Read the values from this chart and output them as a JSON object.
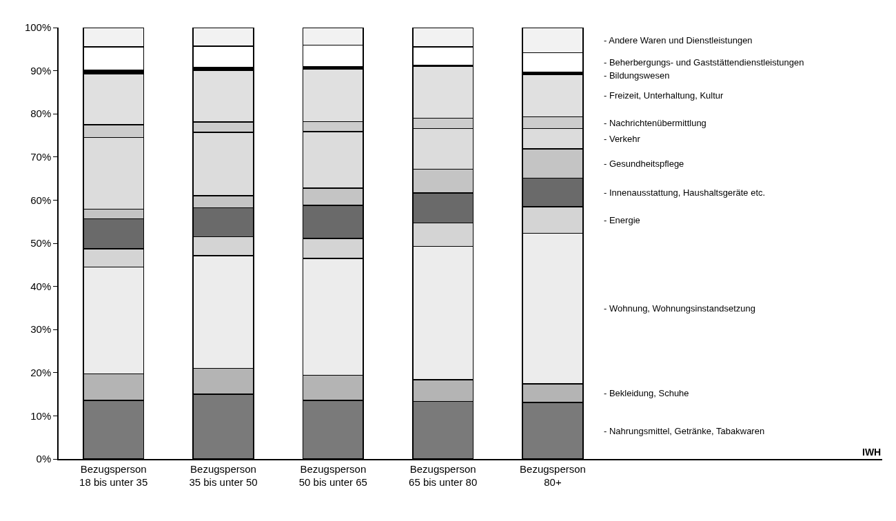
{
  "chart_data": {
    "type": "bar",
    "stacked": true,
    "relative": false,
    "categories": [
      "Bezugsperson\n18 bis unter 35",
      "Bezugsperson\n35 bis unter 50",
      "Bezugsperson\n50 bis unter 65",
      "Bezugsperson\n65 bis unter 80",
      "Bezugsperson\n80+"
    ],
    "series": [
      {
        "name": "- Nahrungsmittel, Getränke, Tabakwaren",
        "color": "#7a7a7a",
        "values": [
          13.6,
          15.0,
          13.6,
          13.3,
          13.1
        ]
      },
      {
        "name": "- Bekleidung, Schuhe",
        "color": "#b4b4b4",
        "values": [
          6.1,
          6.0,
          5.8,
          5.1,
          4.3
        ]
      },
      {
        "name": "- Wohnung, Wohnungsinstandsetzung",
        "color": "#ececec",
        "values": [
          24.8,
          26.1,
          27.1,
          30.9,
          34.9
        ]
      },
      {
        "name": "- Energie",
        "color": "#d4d4d4",
        "values": [
          4.2,
          4.4,
          4.6,
          5.4,
          6.2
        ]
      },
      {
        "name": "- Innenausstattung, Haushaltsgeräte etc.",
        "color": "#6a6a6a",
        "values": [
          7.0,
          6.7,
          7.7,
          7.0,
          6.6
        ]
      },
      {
        "name": "- Gesundheitspflege",
        "color": "#c4c4c4",
        "values": [
          2.2,
          2.8,
          4.0,
          5.5,
          6.8
        ]
      },
      {
        "name": "- Verkehr",
        "color": "#dcdcdc",
        "values": [
          16.6,
          14.7,
          13.1,
          9.4,
          4.7
        ]
      },
      {
        "name": "- Nachrichtenübermittlung",
        "color": "#cccccc",
        "values": [
          3.0,
          2.4,
          2.3,
          2.4,
          2.7
        ]
      },
      {
        "name": "- Freizeit, Unterhaltung, Kultur",
        "color": "#e0e0e0",
        "values": [
          11.8,
          12.0,
          12.1,
          12.0,
          9.8
        ]
      },
      {
        "name": "- Bildungswesen",
        "color": "#000000",
        "values": [
          0.8,
          0.7,
          0.6,
          0.3,
          0.6
        ]
      },
      {
        "name": "- Beherbergungs- und Gaststättendienstleistungen",
        "color": "#ffffff",
        "values": [
          5.4,
          4.9,
          5.0,
          4.2,
          4.5
        ]
      },
      {
        "name": "- Andere Waren und Dienstleistungen",
        "color": "#f2f2f2",
        "values": [
          4.5,
          4.3,
          4.1,
          4.5,
          5.8
        ]
      }
    ],
    "ylim": [
      0,
      100
    ],
    "yticks": [
      {
        "value": 0,
        "label": "0%"
      },
      {
        "value": 10,
        "label": "10%"
      },
      {
        "value": 20,
        "label": "20%"
      },
      {
        "value": 30,
        "label": "30%"
      },
      {
        "value": 40,
        "label": "40%"
      },
      {
        "value": 50,
        "label": "50%"
      },
      {
        "value": 60,
        "label": "60%"
      },
      {
        "value": 70,
        "label": "70%"
      },
      {
        "value": 80,
        "label": "80%"
      },
      {
        "value": 90,
        "label": "90%"
      },
      {
        "value": 100,
        "label": "100%"
      }
    ],
    "grid": false,
    "legend": false,
    "annotations": [
      "IWH"
    ]
  }
}
